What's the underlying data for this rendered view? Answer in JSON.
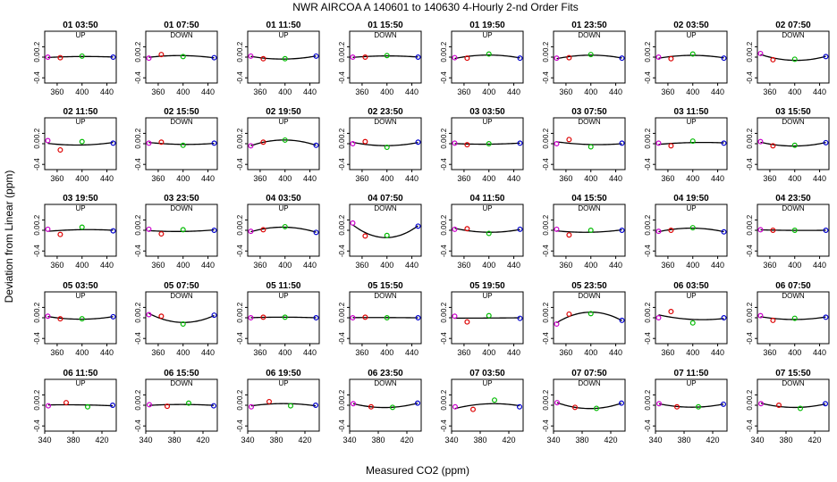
{
  "title": "NWR   AIRCOA A    140601 to 140630   4-Hourly 2-nd Order Fits",
  "xlabel": "Measured CO2 (ppm)",
  "ylabel": "Deviation from Linear (ppm)",
  "colors": {
    "point_1": "#cc00cc",
    "point_2": "#dd0000",
    "point_3": "#00bb00",
    "point_4": "#0000cc",
    "curve": "#000000"
  },
  "chart_data": {
    "type": "scatter",
    "layout": "small-multiples",
    "rows": 5,
    "cols": 8,
    "ylim": [
      -0.5,
      0.5
    ],
    "yticks": [
      -0.4,
      0.0,
      0.2
    ],
    "axis_sets": [
      {
        "xlim": [
          340,
          455
        ],
        "xticks": [
          360,
          400,
          440
        ],
        "x": [
          345,
          365,
          400,
          450
        ]
      },
      {
        "xlim": [
          340,
          440
        ],
        "xticks": [
          340,
          380,
          420
        ],
        "x": [
          345,
          370,
          400,
          435
        ]
      }
    ],
    "panels": [
      {
        "label": "01 03:50",
        "mode": "UP",
        "axes": 0,
        "y": [
          0.0,
          -0.01,
          0.02,
          0.0
        ]
      },
      {
        "label": "01 07:50",
        "mode": "DOWN",
        "axes": 0,
        "y": [
          -0.02,
          0.05,
          0.01,
          -0.01
        ]
      },
      {
        "label": "01 11:50",
        "mode": "UP",
        "axes": 0,
        "y": [
          0.02,
          -0.03,
          -0.03,
          0.02
        ]
      },
      {
        "label": "01 15:50",
        "mode": "DOWN",
        "axes": 0,
        "y": [
          0.0,
          0.0,
          0.03,
          0.0
        ]
      },
      {
        "label": "01 19:50",
        "mode": "UP",
        "axes": 0,
        "y": [
          -0.01,
          -0.02,
          0.06,
          -0.02
        ]
      },
      {
        "label": "01 23:50",
        "mode": "DOWN",
        "axes": 0,
        "y": [
          -0.02,
          -0.01,
          0.05,
          -0.02
        ]
      },
      {
        "label": "02 03:50",
        "mode": "UP",
        "axes": 0,
        "y": [
          0.0,
          -0.03,
          0.06,
          -0.02
        ]
      },
      {
        "label": "02 07:50",
        "mode": "DOWN",
        "axes": 0,
        "y": [
          0.07,
          -0.05,
          -0.04,
          0.01
        ]
      },
      {
        "label": "02 11:50",
        "mode": "UP",
        "axes": 0,
        "y": [
          0.06,
          -0.12,
          0.04,
          0.01
        ]
      },
      {
        "label": "02 15:50",
        "mode": "DOWN",
        "axes": 0,
        "y": [
          0.01,
          0.03,
          -0.03,
          0.01
        ]
      },
      {
        "label": "02 19:50",
        "mode": "UP",
        "axes": 0,
        "y": [
          -0.04,
          0.03,
          0.07,
          -0.03
        ]
      },
      {
        "label": "02 23:50",
        "mode": "DOWN",
        "axes": 0,
        "y": [
          0.0,
          0.04,
          -0.07,
          0.03
        ]
      },
      {
        "label": "03 03:50",
        "mode": "UP",
        "axes": 0,
        "y": [
          0.01,
          -0.02,
          0.0,
          0.01
        ]
      },
      {
        "label": "03 07:50",
        "mode": "DOWN",
        "axes": 0,
        "y": [
          0.0,
          0.08,
          -0.06,
          0.01
        ]
      },
      {
        "label": "03 11:50",
        "mode": "UP",
        "axes": 0,
        "y": [
          0.01,
          -0.04,
          0.05,
          0.01
        ]
      },
      {
        "label": "03 15:50",
        "mode": "DOWN",
        "axes": 0,
        "y": [
          0.04,
          -0.04,
          -0.03,
          0.02
        ]
      },
      {
        "label": "03 19:50",
        "mode": "UP",
        "axes": 0,
        "y": [
          0.02,
          -0.08,
          0.06,
          -0.01
        ]
      },
      {
        "label": "03 23:50",
        "mode": "DOWN",
        "axes": 0,
        "y": [
          0.02,
          -0.07,
          0.01,
          0.0
        ]
      },
      {
        "label": "04 03:50",
        "mode": "UP",
        "axes": 0,
        "y": [
          -0.02,
          0.01,
          0.07,
          -0.04
        ]
      },
      {
        "label": "04 07:50",
        "mode": "DOWN",
        "axes": 0,
        "y": [
          0.14,
          -0.11,
          -0.1,
          0.08
        ]
      },
      {
        "label": "04 11:50",
        "mode": "UP",
        "axes": 0,
        "y": [
          0.02,
          0.03,
          -0.06,
          0.02
        ]
      },
      {
        "label": "04 15:50",
        "mode": "DOWN",
        "axes": 0,
        "y": [
          0.02,
          -0.09,
          0.0,
          0.0
        ]
      },
      {
        "label": "04 19:50",
        "mode": "UP",
        "axes": 0,
        "y": [
          -0.02,
          0.0,
          0.05,
          -0.03
        ]
      },
      {
        "label": "04 23:50",
        "mode": "DOWN",
        "axes": 0,
        "y": [
          0.01,
          0.0,
          0.0,
          0.0
        ]
      },
      {
        "label": "05 03:50",
        "mode": "UP",
        "axes": 0,
        "y": [
          0.03,
          -0.02,
          -0.02,
          0.02
        ]
      },
      {
        "label": "05 07:50",
        "mode": "DOWN",
        "axes": 0,
        "y": [
          0.06,
          0.03,
          -0.12,
          0.05
        ]
      },
      {
        "label": "05 11:50",
        "mode": "UP",
        "axes": 0,
        "y": [
          0.0,
          0.01,
          0.01,
          0.0
        ]
      },
      {
        "label": "05 15:50",
        "mode": "DOWN",
        "axes": 0,
        "y": [
          0.0,
          0.01,
          0.0,
          0.0
        ]
      },
      {
        "label": "05 19:50",
        "mode": "UP",
        "axes": 0,
        "y": [
          0.03,
          -0.08,
          0.04,
          -0.01
        ]
      },
      {
        "label": "05 23:50",
        "mode": "DOWN",
        "axes": 0,
        "y": [
          -0.12,
          0.07,
          0.08,
          -0.05
        ]
      },
      {
        "label": "06 03:50",
        "mode": "UP",
        "axes": 0,
        "y": [
          0.0,
          0.12,
          -0.1,
          0.0
        ]
      },
      {
        "label": "06 07:50",
        "mode": "DOWN",
        "axes": 0,
        "y": [
          0.04,
          -0.05,
          -0.01,
          0.01
        ]
      },
      {
        "label": "06 11:50",
        "mode": "UP",
        "axes": 1,
        "y": [
          -0.01,
          0.05,
          -0.03,
          0.0
        ]
      },
      {
        "label": "06 15:50",
        "mode": "DOWN",
        "axes": 1,
        "y": [
          0.01,
          -0.02,
          0.04,
          -0.01
        ]
      },
      {
        "label": "06 19:50",
        "mode": "UP",
        "axes": 1,
        "y": [
          -0.03,
          0.07,
          -0.01,
          0.0
        ]
      },
      {
        "label": "06 23:50",
        "mode": "DOWN",
        "axes": 1,
        "y": [
          0.03,
          -0.03,
          -0.04,
          0.04
        ]
      },
      {
        "label": "07 03:50",
        "mode": "UP",
        "axes": 1,
        "y": [
          -0.03,
          -0.08,
          0.1,
          -0.03
        ]
      },
      {
        "label": "07 07:50",
        "mode": "DOWN",
        "axes": 1,
        "y": [
          0.05,
          -0.04,
          -0.06,
          0.04
        ]
      },
      {
        "label": "07 11:50",
        "mode": "UP",
        "axes": 1,
        "y": [
          0.03,
          -0.03,
          -0.03,
          0.02
        ]
      },
      {
        "label": "07 15:50",
        "mode": "DOWN",
        "axes": 1,
        "y": [
          0.03,
          0.0,
          -0.06,
          0.03
        ]
      }
    ]
  }
}
